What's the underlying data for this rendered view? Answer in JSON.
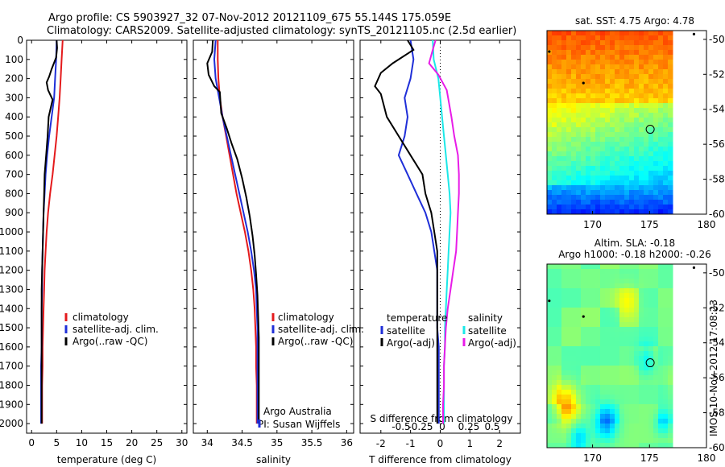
{
  "header": {
    "line1": "Argo profile: CS 5903927_32 07-Nov-2012 20121109_675 55.144S 175.059E",
    "line2": "Climatology: CARS2009. Satellite-adjusted climatology: synTS_20121105.nc (2.5d earlier)"
  },
  "footer": {
    "credit": "IMOS 10-Nov-2012 17:08:23"
  },
  "colors": {
    "climatology": "#e41a1c",
    "satellite": "#1f2fd8",
    "argo": "#000000",
    "magenta": "#e81ce8",
    "cyan": "#1ce8e8"
  },
  "chart_data": [
    {
      "type": "line",
      "xlabel": "temperature (deg C)",
      "ylabel": "",
      "xlim": [
        -1,
        31
      ],
      "ylim": [
        2050,
        0
      ],
      "xticks": [
        "0",
        "5",
        "10",
        "15",
        "20",
        "25",
        "30"
      ],
      "yticks": [
        "0",
        "100",
        "200",
        "300",
        "400",
        "500",
        "600",
        "700",
        "800",
        "900",
        "1000",
        "1100",
        "1200",
        "1300",
        "1400",
        "1500",
        "1600",
        "1700",
        "1800",
        "1900",
        "2000"
      ],
      "legend": [
        "climatology",
        "satellite-adj. clim.",
        "Argo(..raw -QC)"
      ],
      "series": [
        {
          "name": "climatology",
          "color": "#e41a1c",
          "x": [
            6.2,
            6.0,
            5.8,
            5.6,
            5.3,
            5.0,
            4.6,
            4.2,
            3.7,
            3.3,
            3.0,
            2.8,
            2.6,
            2.5,
            2.4,
            2.3,
            2.2,
            2.2,
            2.1,
            2.1,
            2.1
          ],
          "y": [
            0,
            100,
            200,
            300,
            400,
            500,
            600,
            700,
            800,
            900,
            1000,
            1100,
            1200,
            1300,
            1400,
            1500,
            1600,
            1700,
            1800,
            1900,
            2000
          ]
        },
        {
          "name": "satellite-adj. clim.",
          "color": "#1f2fd8",
          "x": [
            5.0,
            4.9,
            4.7,
            4.5,
            4.0,
            3.5,
            3.1,
            2.8,
            2.6,
            2.4,
            2.3,
            2.2,
            2.1,
            2.1,
            2.0,
            2.0,
            2.0,
            1.9,
            1.9,
            1.9,
            1.9
          ],
          "y": [
            0,
            100,
            200,
            300,
            400,
            500,
            600,
            700,
            800,
            900,
            1000,
            1100,
            1200,
            1300,
            1400,
            1500,
            1600,
            1700,
            1800,
            1900,
            2000
          ]
        },
        {
          "name": "Argo(..raw -QC)",
          "color": "#000000",
          "x": [
            5.0,
            5.1,
            4.9,
            4.0,
            3.5,
            3.0,
            3.3,
            4.2,
            3.4,
            3.2,
            2.9,
            2.6,
            2.5,
            2.4,
            2.3,
            2.2,
            2.1,
            2.0,
            2.0,
            2.0,
            2.0,
            2.0,
            2.0
          ],
          "y": [
            0,
            40,
            90,
            150,
            190,
            220,
            260,
            310,
            400,
            500,
            600,
            700,
            800,
            900,
            1000,
            1100,
            1200,
            1300,
            1400,
            1500,
            1700,
            1900,
            2000
          ]
        }
      ]
    },
    {
      "type": "line",
      "xlabel": "salinity",
      "ylabel": "",
      "xlim": [
        33.8,
        36.1
      ],
      "ylim": [
        2050,
        0
      ],
      "xticks": [
        "34",
        "34.5",
        "35",
        "35.5",
        "36"
      ],
      "legend": [
        "climatology",
        "satellite-adj. clim.",
        "Argo(..raw -QC)"
      ],
      "annotations": [
        "Argo Australia",
        "PI: Susan Wijffels"
      ],
      "series": [
        {
          "name": "climatology",
          "color": "#e41a1c",
          "x": [
            34.15,
            34.15,
            34.16,
            34.18,
            34.22,
            34.27,
            34.32,
            34.37,
            34.42,
            34.48,
            34.54,
            34.59,
            34.63,
            34.66,
            34.68,
            34.69,
            34.7,
            34.7,
            34.71,
            34.71,
            34.71
          ],
          "y": [
            0,
            100,
            200,
            300,
            400,
            500,
            600,
            700,
            800,
            900,
            1000,
            1100,
            1200,
            1300,
            1400,
            1500,
            1600,
            1700,
            1800,
            1900,
            2000
          ]
        },
        {
          "name": "satellite-adj. clim.",
          "color": "#1f2fd8",
          "x": [
            34.12,
            34.1,
            34.12,
            34.17,
            34.22,
            34.28,
            34.34,
            34.4,
            34.46,
            34.52,
            34.58,
            34.63,
            34.67,
            34.7,
            34.71,
            34.72,
            34.72,
            34.72,
            34.72,
            34.72,
            34.72
          ],
          "y": [
            0,
            100,
            200,
            300,
            400,
            500,
            600,
            700,
            800,
            900,
            1000,
            1100,
            1200,
            1300,
            1400,
            1500,
            1600,
            1700,
            1800,
            1900,
            2000
          ]
        },
        {
          "name": "Argo(..raw -QC)",
          "color": "#000000",
          "x": [
            34.08,
            34.07,
            34.0,
            34.02,
            34.1,
            34.18,
            34.2,
            34.28,
            34.35,
            34.43,
            34.5,
            34.56,
            34.61,
            34.65,
            34.68,
            34.7,
            34.72,
            34.73,
            34.74,
            34.74,
            34.74,
            34.74
          ],
          "y": [
            0,
            60,
            120,
            180,
            240,
            270,
            380,
            460,
            540,
            620,
            720,
            820,
            920,
            1020,
            1120,
            1220,
            1330,
            1440,
            1550,
            1700,
            1850,
            2000
          ]
        }
      ]
    },
    {
      "type": "line",
      "xlabel": "T difference from climatology",
      "xlabel_top": "S difference from climatology",
      "ylabel": "",
      "xlim": [
        -2.7,
        2.7
      ],
      "ylim": [
        2050,
        0
      ],
      "xticks": [
        "-2",
        "-1",
        "0",
        "1",
        "2"
      ],
      "xticks_top": [
        "-0.5",
        "-0.25",
        "0",
        "0.25",
        "0.5"
      ],
      "legend": [
        "temperature",
        "satellite",
        "Argo(-adj)",
        "salinity",
        "satellite",
        "Argo(-adj)"
      ],
      "series": [
        {
          "name": "satellite",
          "color": "#1f2fd8",
          "x": [
            -1.0,
            -0.9,
            -1.0,
            -1.2,
            -1.1,
            -1.2,
            -1.4,
            -1.1,
            -0.8,
            -0.5,
            -0.3,
            -0.2,
            -0.1,
            -0.1,
            -0.1,
            -0.1,
            -0.05,
            -0.05,
            -0.05,
            -0.05,
            -0.05
          ],
          "y": [
            0,
            100,
            200,
            300,
            400,
            500,
            600,
            700,
            800,
            900,
            1000,
            1100,
            1200,
            1300,
            1400,
            1500,
            1600,
            1700,
            1800,
            1900,
            2000
          ]
        },
        {
          "name": "Argo(-adj)",
          "color": "#000000",
          "x": [
            -1.1,
            -0.9,
            -1.6,
            -2.0,
            -2.2,
            -2.0,
            -1.8,
            -1.4,
            -1.0,
            -0.6,
            -0.5,
            -0.3,
            -0.2,
            -0.1,
            -0.1,
            -0.1,
            -0.1,
            -0.1,
            -0.1,
            -0.1,
            -0.1,
            -0.1
          ],
          "y": [
            0,
            50,
            120,
            170,
            240,
            280,
            400,
            500,
            600,
            700,
            800,
            900,
            1000,
            1100,
            1200,
            1300,
            1400,
            1500,
            1600,
            1700,
            1850,
            2000
          ]
        },
        {
          "name": "satellite",
          "color": "#1ce8e8",
          "x": [
            -0.08,
            -0.07,
            -0.02,
            0.0,
            0.02,
            0.04,
            0.06,
            0.08,
            0.1,
            0.11,
            0.1,
            0.09,
            0.08,
            0.07,
            0.06,
            0.05,
            0.05,
            0.04,
            0.04,
            0.04,
            0.04
          ],
          "y": [
            0,
            100,
            200,
            300,
            400,
            500,
            600,
            700,
            800,
            900,
            1000,
            1100,
            1200,
            1300,
            1400,
            1500,
            1600,
            1700,
            1800,
            1900,
            2000
          ]
        },
        {
          "name": "Argo(-adj)",
          "color": "#e81ce8",
          "x": [
            -0.05,
            -0.08,
            -0.12,
            -0.02,
            0.07,
            0.12,
            0.15,
            0.19,
            0.2,
            0.2,
            0.19,
            0.18,
            0.17,
            0.14,
            0.11,
            0.08,
            0.06,
            0.05,
            0.04,
            0.04,
            0.03,
            0.03
          ],
          "y": [
            0,
            50,
            120,
            180,
            260,
            400,
            500,
            600,
            700,
            800,
            900,
            1000,
            1100,
            1200,
            1300,
            1400,
            1500,
            1600,
            1700,
            1800,
            1900,
            2000
          ]
        }
      ]
    },
    {
      "type": "heatmap",
      "title": "sat. SST: 4.75  Argo: 4.78",
      "xlim": [
        166,
        180
      ],
      "ylim": [
        -60,
        -49.5
      ],
      "xticks": [
        "170",
        "175",
        "180"
      ],
      "yticks": [
        "-50",
        "-52",
        "-54",
        "-56",
        "-58",
        "-60"
      ],
      "marker": {
        "lon": 175.059,
        "lat": -55.144
      },
      "points": [
        {
          "lon": 169.2,
          "lat": -52.5
        },
        {
          "lon": 178.9,
          "lat": -49.7
        },
        {
          "lon": 166.2,
          "lat": -50.7
        }
      ]
    },
    {
      "type": "heatmap",
      "title": "Altim. SLA: -0.18",
      "subtitle": "Argo h1000: -0.18  h2000: -0.26",
      "xlim": [
        166,
        180
      ],
      "ylim": [
        -60,
        -49.5
      ],
      "xticks": [
        "170",
        "175",
        "180"
      ],
      "yticks": [
        "-50",
        "-52",
        "-54",
        "-56",
        "-58",
        "-60"
      ],
      "marker": {
        "lon": 175.059,
        "lat": -55.144
      },
      "points": [
        {
          "lon": 169.2,
          "lat": -52.5
        },
        {
          "lon": 178.9,
          "lat": -49.7
        },
        {
          "lon": 166.2,
          "lat": -51.6
        }
      ]
    }
  ]
}
